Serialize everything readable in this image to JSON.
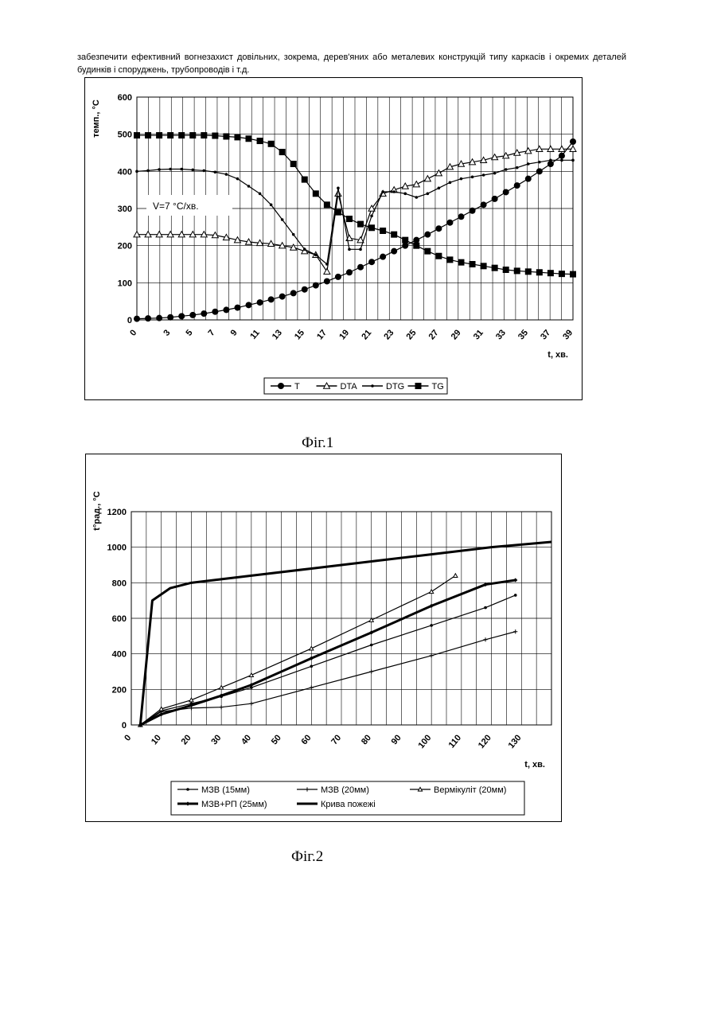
{
  "document": {
    "intro_text": "забезпечити ефективний вогнезахист довільних, зокрема, дерев'яних або металевих конструкцій типу каркасів і окремих деталей будинків і споруджень, трубопроводів і т.д.",
    "fig1_caption": "Фіг.1",
    "fig2_caption": "Фіг.2"
  },
  "chart_data": [
    {
      "type": "line",
      "xlabel": "t, хв.",
      "ylabel": "темп., °С",
      "annotation": "V=7 °С/хв.",
      "ylim": [
        0,
        600
      ],
      "yticks": [
        0,
        100,
        200,
        300,
        400,
        500,
        600
      ],
      "xlim": [
        0,
        39
      ],
      "xticks": [
        0,
        3,
        5,
        7,
        9,
        11,
        13,
        15,
        17,
        19,
        21,
        23,
        25,
        27,
        29,
        31,
        33,
        35,
        37,
        39
      ],
      "grid": true,
      "legend": "bottom",
      "series": [
        {
          "name": "T",
          "marker": "circle",
          "x": [
            0,
            1,
            2,
            3,
            4,
            5,
            6,
            7,
            8,
            9,
            10,
            11,
            12,
            13,
            14,
            15,
            16,
            17,
            18,
            19,
            20,
            21,
            22,
            23,
            24,
            25,
            26,
            27,
            28,
            29,
            30,
            31,
            32,
            33,
            34,
            35,
            36,
            37,
            38,
            39
          ],
          "y": [
            3,
            4,
            5,
            7,
            10,
            13,
            17,
            22,
            27,
            33,
            40,
            47,
            55,
            63,
            72,
            82,
            93,
            104,
            116,
            128,
            142,
            156,
            170,
            185,
            200,
            215,
            230,
            246,
            262,
            278,
            294,
            310,
            326,
            344,
            362,
            380,
            400,
            420,
            442,
            480
          ]
        },
        {
          "name": "DTA",
          "marker": "triangle",
          "x": [
            0,
            1,
            2,
            3,
            4,
            5,
            6,
            7,
            8,
            9,
            10,
            11,
            12,
            13,
            14,
            15,
            16,
            17,
            18,
            19,
            20,
            21,
            22,
            23,
            24,
            25,
            26,
            27,
            28,
            29,
            30,
            31,
            32,
            33,
            34,
            35,
            36,
            37,
            38,
            39
          ],
          "y": [
            230,
            230,
            230,
            230,
            230,
            230,
            230,
            228,
            222,
            215,
            210,
            207,
            205,
            200,
            195,
            185,
            175,
            130,
            340,
            220,
            215,
            300,
            340,
            350,
            360,
            365,
            380,
            395,
            412,
            420,
            425,
            430,
            438,
            442,
            450,
            455,
            460,
            460,
            460,
            460
          ]
        },
        {
          "name": "DTG",
          "marker": "dot",
          "x": [
            0,
            1,
            2,
            3,
            4,
            5,
            6,
            7,
            8,
            9,
            10,
            11,
            12,
            13,
            14,
            15,
            16,
            17,
            18,
            19,
            20,
            21,
            22,
            23,
            24,
            25,
            26,
            27,
            28,
            29,
            30,
            31,
            32,
            33,
            34,
            35,
            36,
            37,
            38,
            39
          ],
          "y": [
            400,
            402,
            405,
            406,
            406,
            404,
            402,
            398,
            392,
            380,
            360,
            340,
            310,
            270,
            230,
            190,
            175,
            150,
            355,
            190,
            190,
            280,
            345,
            345,
            340,
            330,
            340,
            355,
            370,
            380,
            385,
            390,
            395,
            405,
            410,
            420,
            425,
            430,
            430,
            430
          ]
        },
        {
          "name": "TG",
          "marker": "square",
          "x": [
            0,
            1,
            2,
            3,
            4,
            5,
            6,
            7,
            8,
            9,
            10,
            11,
            12,
            13,
            14,
            15,
            16,
            17,
            18,
            19,
            20,
            21,
            22,
            23,
            24,
            25,
            26,
            27,
            28,
            29,
            30,
            31,
            32,
            33,
            34,
            35,
            36,
            37,
            38,
            39
          ],
          "y": [
            497,
            497,
            497,
            497,
            497,
            497,
            497,
            496,
            494,
            492,
            488,
            482,
            474,
            452,
            420,
            378,
            340,
            310,
            290,
            272,
            258,
            248,
            240,
            230,
            215,
            200,
            185,
            172,
            162,
            155,
            150,
            145,
            140,
            135,
            132,
            130,
            128,
            126,
            124,
            123
          ]
        }
      ]
    },
    {
      "type": "line",
      "xlabel": "t, хв.",
      "ylabel": "t°рад., °С",
      "ylim": [
        0,
        1200
      ],
      "yticks": [
        0,
        200,
        400,
        600,
        800,
        1000,
        1200
      ],
      "xlim": [
        0,
        140
      ],
      "xticks": [
        0,
        10,
        20,
        30,
        40,
        50,
        60,
        70,
        80,
        90,
        100,
        110,
        120,
        130
      ],
      "grid": true,
      "legend": "bottom",
      "series": [
        {
          "name": "МЗВ (15мм)",
          "marker": "dot",
          "x": [
            3,
            10,
            20,
            30,
            40,
            60,
            80,
            100,
            118,
            128
          ],
          "y": [
            0,
            80,
            120,
            160,
            210,
            330,
            450,
            560,
            660,
            730
          ]
        },
        {
          "name": "МЗВ (20мм)",
          "marker": "plus",
          "x": [
            3,
            10,
            20,
            30,
            40,
            60,
            80,
            100,
            118,
            128
          ],
          "y": [
            0,
            75,
            95,
            100,
            120,
            210,
            300,
            390,
            480,
            525
          ]
        },
        {
          "name": "Вермікуліт (20мм)",
          "marker": "triangle",
          "x": [
            3,
            10,
            20,
            30,
            40,
            60,
            80,
            100,
            108
          ],
          "y": [
            0,
            90,
            140,
            210,
            280,
            430,
            590,
            750,
            840
          ]
        },
        {
          "name": "МЗВ+РП (25мм)",
          "marker": "diamond",
          "x": [
            3,
            10,
            20,
            30,
            40,
            60,
            80,
            100,
            118,
            128
          ],
          "y": [
            0,
            60,
            110,
            165,
            225,
            375,
            520,
            670,
            790,
            815
          ]
        },
        {
          "name": "Крива пожежі",
          "marker": "none",
          "x": [
            3,
            7,
            13,
            20,
            30,
            40,
            60,
            80,
            100,
            120,
            140
          ],
          "y": [
            0,
            700,
            770,
            800,
            820,
            840,
            880,
            920,
            960,
            1000,
            1030
          ]
        }
      ]
    }
  ]
}
